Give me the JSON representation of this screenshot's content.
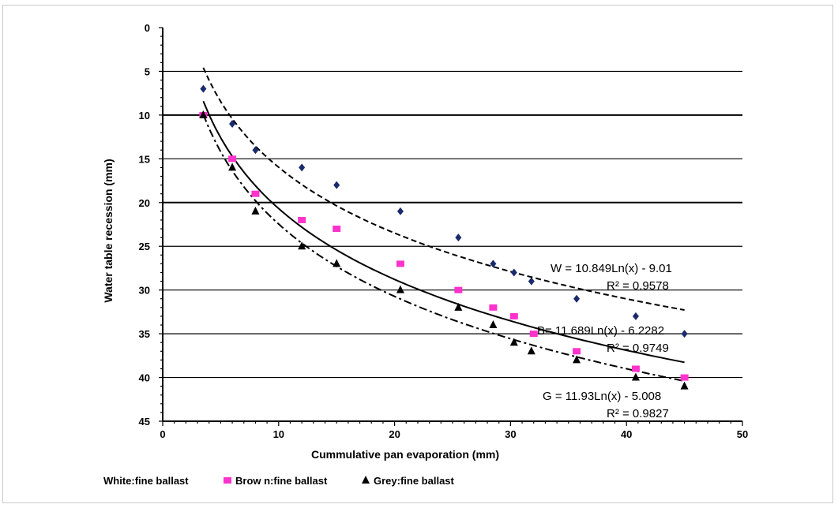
{
  "chart_data": {
    "type": "scatter",
    "title": "",
    "xlabel": "Cummulative pan evaporation (mm)",
    "ylabel": "Water table recession (mm)",
    "xlim": [
      0,
      50
    ],
    "ylim": [
      0,
      45
    ],
    "y_inverted": true,
    "x_ticks": [
      "0",
      "10",
      "20",
      "30",
      "40",
      "50"
    ],
    "y_ticks": [
      "0",
      "5",
      "10",
      "15",
      "20",
      "25",
      "30",
      "35",
      "40",
      "45"
    ],
    "grid": "horizontal",
    "legend_placement": "bottom",
    "series": [
      {
        "name": "White:fine ballast",
        "marker": "diamond",
        "color": "#1a2a6c",
        "x": [
          3.5,
          6,
          8,
          12,
          15,
          20.5,
          25.5,
          28.5,
          30.3,
          31.8,
          35.7,
          40.8,
          45
        ],
        "y": [
          7,
          11,
          14,
          16,
          18,
          21,
          24,
          27,
          28,
          29,
          31,
          33,
          35
        ],
        "trend": {
          "a": 10.849,
          "b": -9.01,
          "style": "dashed",
          "equation": "W = 10.849Ln(x) - 9.01",
          "r2": "R² = 0.9578"
        }
      },
      {
        "name": "Brow n:fine ballast",
        "marker": "square",
        "color": "#ff33cc",
        "x": [
          3.5,
          6,
          8,
          12,
          15,
          20.5,
          25.5,
          28.5,
          30.3,
          32,
          35.7,
          40.8,
          45
        ],
        "y": [
          10,
          15,
          19,
          22,
          23,
          27,
          30,
          32,
          33,
          35,
          37,
          39,
          40
        ],
        "trend": {
          "a": 11.689,
          "b": -6.2282,
          "style": "solid",
          "equation": "B= 11.689Ln(x) - 6.2282",
          "r2": "R² = 0.9749"
        }
      },
      {
        "name": "Grey:fine ballast",
        "marker": "triangle",
        "color": "#000000",
        "x": [
          3.5,
          6,
          8,
          12,
          15,
          20.5,
          25.5,
          28.5,
          30.3,
          31.8,
          35.7,
          40.8,
          45
        ],
        "y": [
          10,
          16,
          21,
          25,
          27,
          30,
          32,
          34,
          36,
          37,
          38,
          40,
          41
        ],
        "trend": {
          "a": 11.93,
          "b": -5.008,
          "style": "dashdot",
          "equation": "G = 11.93Ln(x) - 5.008",
          "r2": "R² = 0.9827"
        }
      }
    ]
  }
}
